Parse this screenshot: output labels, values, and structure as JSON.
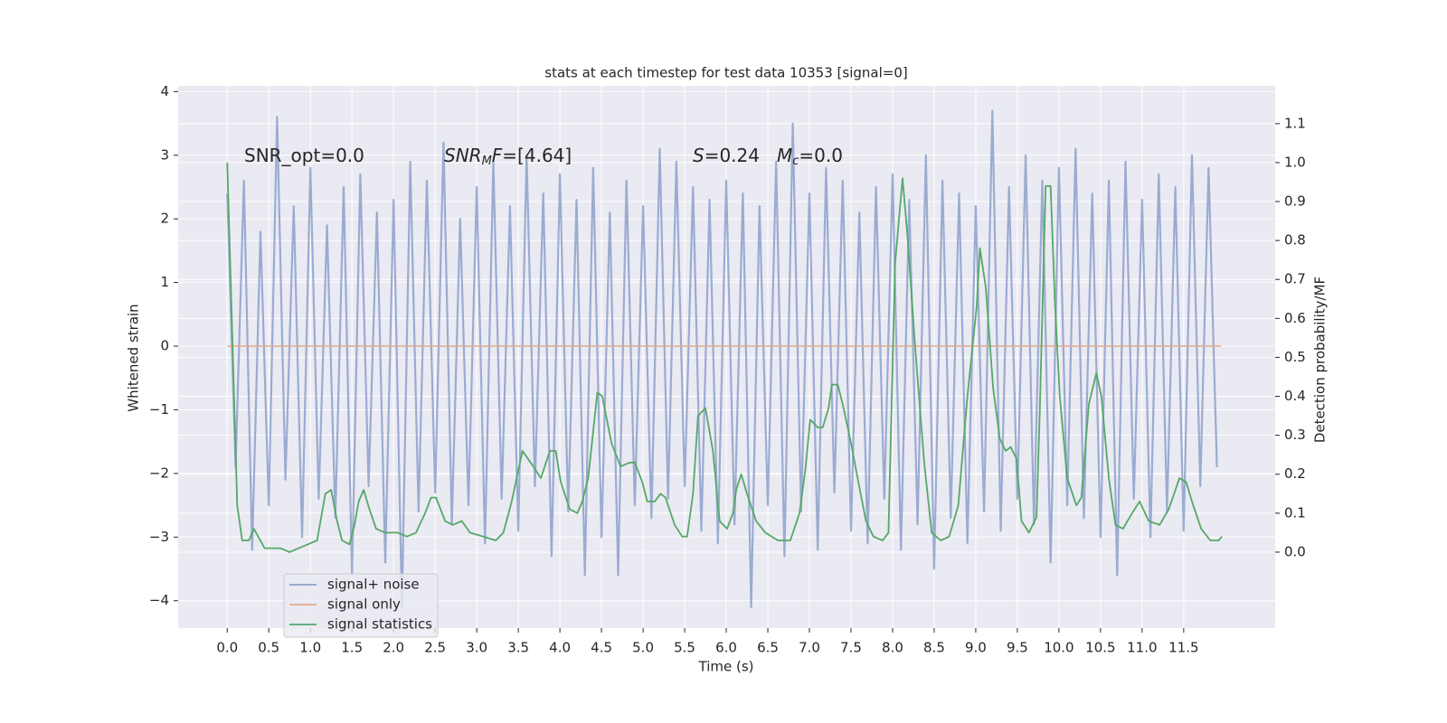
{
  "chart_data": {
    "type": "line",
    "title": "stats at each timestep for test data 10353 [signal=0]",
    "xlabel": "Time (s)",
    "ylabel": "Whitened strain",
    "y2label": "Detection probability/MF",
    "xlim": [
      -0.59,
      12.6
    ],
    "ylim": [
      -4.43,
      4.09
    ],
    "y2lim": [
      -0.195,
      1.197
    ],
    "grid": true,
    "legend": "lower left",
    "xticks": [
      {
        "value": 0,
        "label": "0.0"
      },
      0.5,
      {
        "value": 1,
        "label": "1.0"
      },
      1.5,
      {
        "value": 2,
        "label": "2.0"
      },
      2.5,
      {
        "value": 3,
        "label": "3.0"
      },
      3.5,
      {
        "value": 4,
        "label": "4.0"
      },
      4.5,
      {
        "value": 5,
        "label": "5.0"
      },
      5.5,
      {
        "value": 6,
        "label": "6.0"
      },
      6.5,
      {
        "value": 7,
        "label": "7.0"
      },
      7.5,
      {
        "value": 8,
        "label": "8.0"
      },
      8.5,
      {
        "value": 9,
        "label": "9.0"
      },
      9.5,
      {
        "value": 10,
        "label": "10.0"
      },
      10.5,
      {
        "value": 11,
        "label": "11.0"
      },
      11.5
    ],
    "yticks": [
      {
        "value": -4,
        "label": "−4"
      },
      {
        "value": -3,
        "label": "−3"
      },
      {
        "value": -2,
        "label": "−2"
      },
      {
        "value": -1,
        "label": "−1"
      },
      0,
      1,
      2,
      3,
      4
    ],
    "y2ticks": [
      {
        "value": 0,
        "label": "0.0"
      },
      0.1,
      0.2,
      0.3,
      0.4,
      0.5,
      0.6,
      0.7,
      0.8,
      0.9,
      {
        "value": 1,
        "label": "1.0"
      },
      1.1
    ],
    "annotations": [
      {
        "parts": [
          {
            "text": "SNR_opt=0.0"
          }
        ]
      },
      {
        "parts": [
          {
            "text": "SNR",
            "italic": true
          },
          {
            "text": "M",
            "italic": true,
            "sub": true
          },
          {
            "text": "F",
            "italic": true
          },
          {
            "text": "=[4.64]"
          }
        ]
      },
      {
        "parts": [
          {
            "text": "S",
            "italic": true
          },
          {
            "text": "=0.24"
          }
        ]
      },
      {
        "parts": [
          {
            "text": "M",
            "italic": true
          },
          {
            "text": "c",
            "italic": true,
            "sub": true
          },
          {
            "text": "=0.0"
          }
        ]
      }
    ],
    "series": [
      {
        "name": "signal+ noise",
        "color": "#8da0cb",
        "axis": "y",
        "x": [
          0.0,
          0.1,
          0.2,
          0.3,
          0.4,
          0.5,
          0.6,
          0.7,
          0.8,
          0.9,
          1.0,
          1.1,
          1.2,
          1.3,
          1.4,
          1.5,
          1.6,
          1.7,
          1.8,
          1.9,
          2.0,
          2.1,
          2.2,
          2.3,
          2.4,
          2.5,
          2.6,
          2.7,
          2.8,
          2.9,
          3.0,
          3.1,
          3.2,
          3.3,
          3.4,
          3.5,
          3.6,
          3.7,
          3.8,
          3.9,
          4.0,
          4.1,
          4.2,
          4.3,
          4.4,
          4.5,
          4.6,
          4.7,
          4.8,
          4.9,
          5.0,
          5.1,
          5.2,
          5.3,
          5.4,
          5.5,
          5.6,
          5.7,
          5.8,
          5.9,
          6.0,
          6.1,
          6.2,
          6.3,
          6.4,
          6.5,
          6.6,
          6.7,
          6.8,
          6.9,
          7.0,
          7.1,
          7.2,
          7.3,
          7.4,
          7.5,
          7.6,
          7.7,
          7.8,
          7.9,
          8.0,
          8.1,
          8.2,
          8.3,
          8.4,
          8.5,
          8.6,
          8.7,
          8.8,
          8.9,
          9.0,
          9.1,
          9.2,
          9.3,
          9.4,
          9.5,
          9.6,
          9.7,
          9.8,
          9.9,
          10.0,
          10.1,
          10.2,
          10.3,
          10.4,
          10.5,
          10.6,
          10.7,
          10.8,
          10.9,
          11.0,
          11.1,
          11.2,
          11.3,
          11.4,
          11.5,
          11.6,
          11.7,
          11.8,
          11.9
        ],
        "values": [
          2.4,
          -1.9,
          2.6,
          -3.2,
          1.8,
          -2.5,
          3.6,
          -2.1,
          2.2,
          -3.0,
          2.8,
          -2.4,
          1.9,
          -2.7,
          2.5,
          -3.6,
          2.7,
          -2.2,
          2.1,
          -3.4,
          2.3,
          -4.1,
          2.9,
          -2.6,
          2.6,
          -2.3,
          3.2,
          -2.8,
          2.0,
          -2.5,
          2.5,
          -3.1,
          2.9,
          -2.4,
          2.2,
          -2.9,
          3.0,
          -2.2,
          2.4,
          -3.3,
          2.7,
          -2.6,
          2.3,
          -3.6,
          2.8,
          -3.0,
          2.1,
          -3.6,
          2.6,
          -2.5,
          2.2,
          -2.7,
          3.1,
          -2.4,
          2.9,
          -2.2,
          2.5,
          -2.9,
          2.3,
          -3.1,
          2.6,
          -2.8,
          2.4,
          -4.1,
          2.2,
          -2.5,
          2.9,
          -3.3,
          3.5,
          -2.6,
          2.4,
          -3.2,
          2.8,
          -2.3,
          2.6,
          -2.9,
          2.1,
          -3.1,
          2.5,
          -2.4,
          2.7,
          -3.2,
          2.3,
          -2.8,
          3.0,
          -3.5,
          2.6,
          -2.7,
          2.4,
          -3.1,
          2.2,
          -2.6,
          3.7,
          -2.9,
          2.5,
          -2.4,
          3.0,
          -2.8,
          2.6,
          -3.4,
          2.8,
          -2.5,
          3.1,
          -2.7,
          2.4,
          -3.0,
          2.6,
          -3.6,
          2.9,
          -2.4,
          2.3,
          -3.0,
          2.7,
          -2.6,
          2.5,
          -2.9,
          3.0,
          -2.2,
          2.8,
          -1.9
        ]
      },
      {
        "name": "signal only",
        "color": "#e6a98a",
        "axis": "y",
        "x": [
          0.0,
          11.95
        ],
        "values": [
          0,
          0
        ]
      },
      {
        "name": "signal statistics",
        "color": "#55a868",
        "axis": "y2",
        "x": [
          0.0,
          0.12,
          0.18,
          0.26,
          0.32,
          0.45,
          0.53,
          0.64,
          0.75,
          0.86,
          0.97,
          1.08,
          1.18,
          1.25,
          1.32,
          1.38,
          1.47,
          1.53,
          1.58,
          1.64,
          1.71,
          1.79,
          1.9,
          2.05,
          2.16,
          2.27,
          2.38,
          2.45,
          2.51,
          2.62,
          2.71,
          2.82,
          2.92,
          3.08,
          3.23,
          3.32,
          3.42,
          3.55,
          3.68,
          3.77,
          3.88,
          3.95,
          4.01,
          4.12,
          4.21,
          4.27,
          4.34,
          4.45,
          4.51,
          4.62,
          4.73,
          4.84,
          4.9,
          4.99,
          5.05,
          5.14,
          5.21,
          5.27,
          5.38,
          5.47,
          5.53,
          5.6,
          5.66,
          5.75,
          5.84,
          5.92,
          6.01,
          6.08,
          6.12,
          6.18,
          6.25,
          6.36,
          6.47,
          6.62,
          6.68,
          6.77,
          6.88,
          6.95,
          7.01,
          7.1,
          7.16,
          7.23,
          7.27,
          7.34,
          7.4,
          7.49,
          7.58,
          7.68,
          7.77,
          7.88,
          7.95,
          8.03,
          8.12,
          8.18,
          8.27,
          8.38,
          8.47,
          8.58,
          8.68,
          8.79,
          8.9,
          9.01,
          9.05,
          9.12,
          9.21,
          9.29,
          9.36,
          9.42,
          9.49,
          9.55,
          9.64,
          9.73,
          9.77,
          9.84,
          9.9,
          9.95,
          10.01,
          10.1,
          10.21,
          10.27,
          10.36,
          10.45,
          10.51,
          10.6,
          10.68,
          10.77,
          10.88,
          10.97,
          11.08,
          11.21,
          11.32,
          11.45,
          11.53,
          11.6,
          11.71,
          11.82,
          11.92,
          11.96
        ],
        "values": [
          1.0,
          0.12,
          0.03,
          0.03,
          0.06,
          0.01,
          0.01,
          0.01,
          0.0,
          0.01,
          0.02,
          0.03,
          0.15,
          0.16,
          0.08,
          0.03,
          0.02,
          0.07,
          0.13,
          0.16,
          0.11,
          0.06,
          0.05,
          0.05,
          0.04,
          0.05,
          0.1,
          0.14,
          0.14,
          0.08,
          0.07,
          0.08,
          0.05,
          0.04,
          0.03,
          0.05,
          0.13,
          0.26,
          0.22,
          0.19,
          0.26,
          0.26,
          0.18,
          0.11,
          0.1,
          0.13,
          0.19,
          0.41,
          0.4,
          0.28,
          0.22,
          0.23,
          0.23,
          0.18,
          0.13,
          0.13,
          0.15,
          0.14,
          0.07,
          0.04,
          0.04,
          0.15,
          0.35,
          0.37,
          0.26,
          0.08,
          0.06,
          0.1,
          0.16,
          0.2,
          0.15,
          0.08,
          0.05,
          0.03,
          0.03,
          0.03,
          0.1,
          0.21,
          0.34,
          0.32,
          0.32,
          0.37,
          0.43,
          0.43,
          0.38,
          0.29,
          0.19,
          0.08,
          0.04,
          0.03,
          0.05,
          0.74,
          0.96,
          0.81,
          0.53,
          0.23,
          0.05,
          0.03,
          0.04,
          0.12,
          0.4,
          0.63,
          0.78,
          0.68,
          0.42,
          0.29,
          0.26,
          0.27,
          0.24,
          0.08,
          0.05,
          0.09,
          0.36,
          0.94,
          0.94,
          0.65,
          0.4,
          0.19,
          0.12,
          0.14,
          0.38,
          0.46,
          0.4,
          0.19,
          0.07,
          0.06,
          0.1,
          0.13,
          0.08,
          0.07,
          0.11,
          0.19,
          0.18,
          0.13,
          0.06,
          0.03,
          0.03,
          0.04
        ]
      }
    ]
  }
}
